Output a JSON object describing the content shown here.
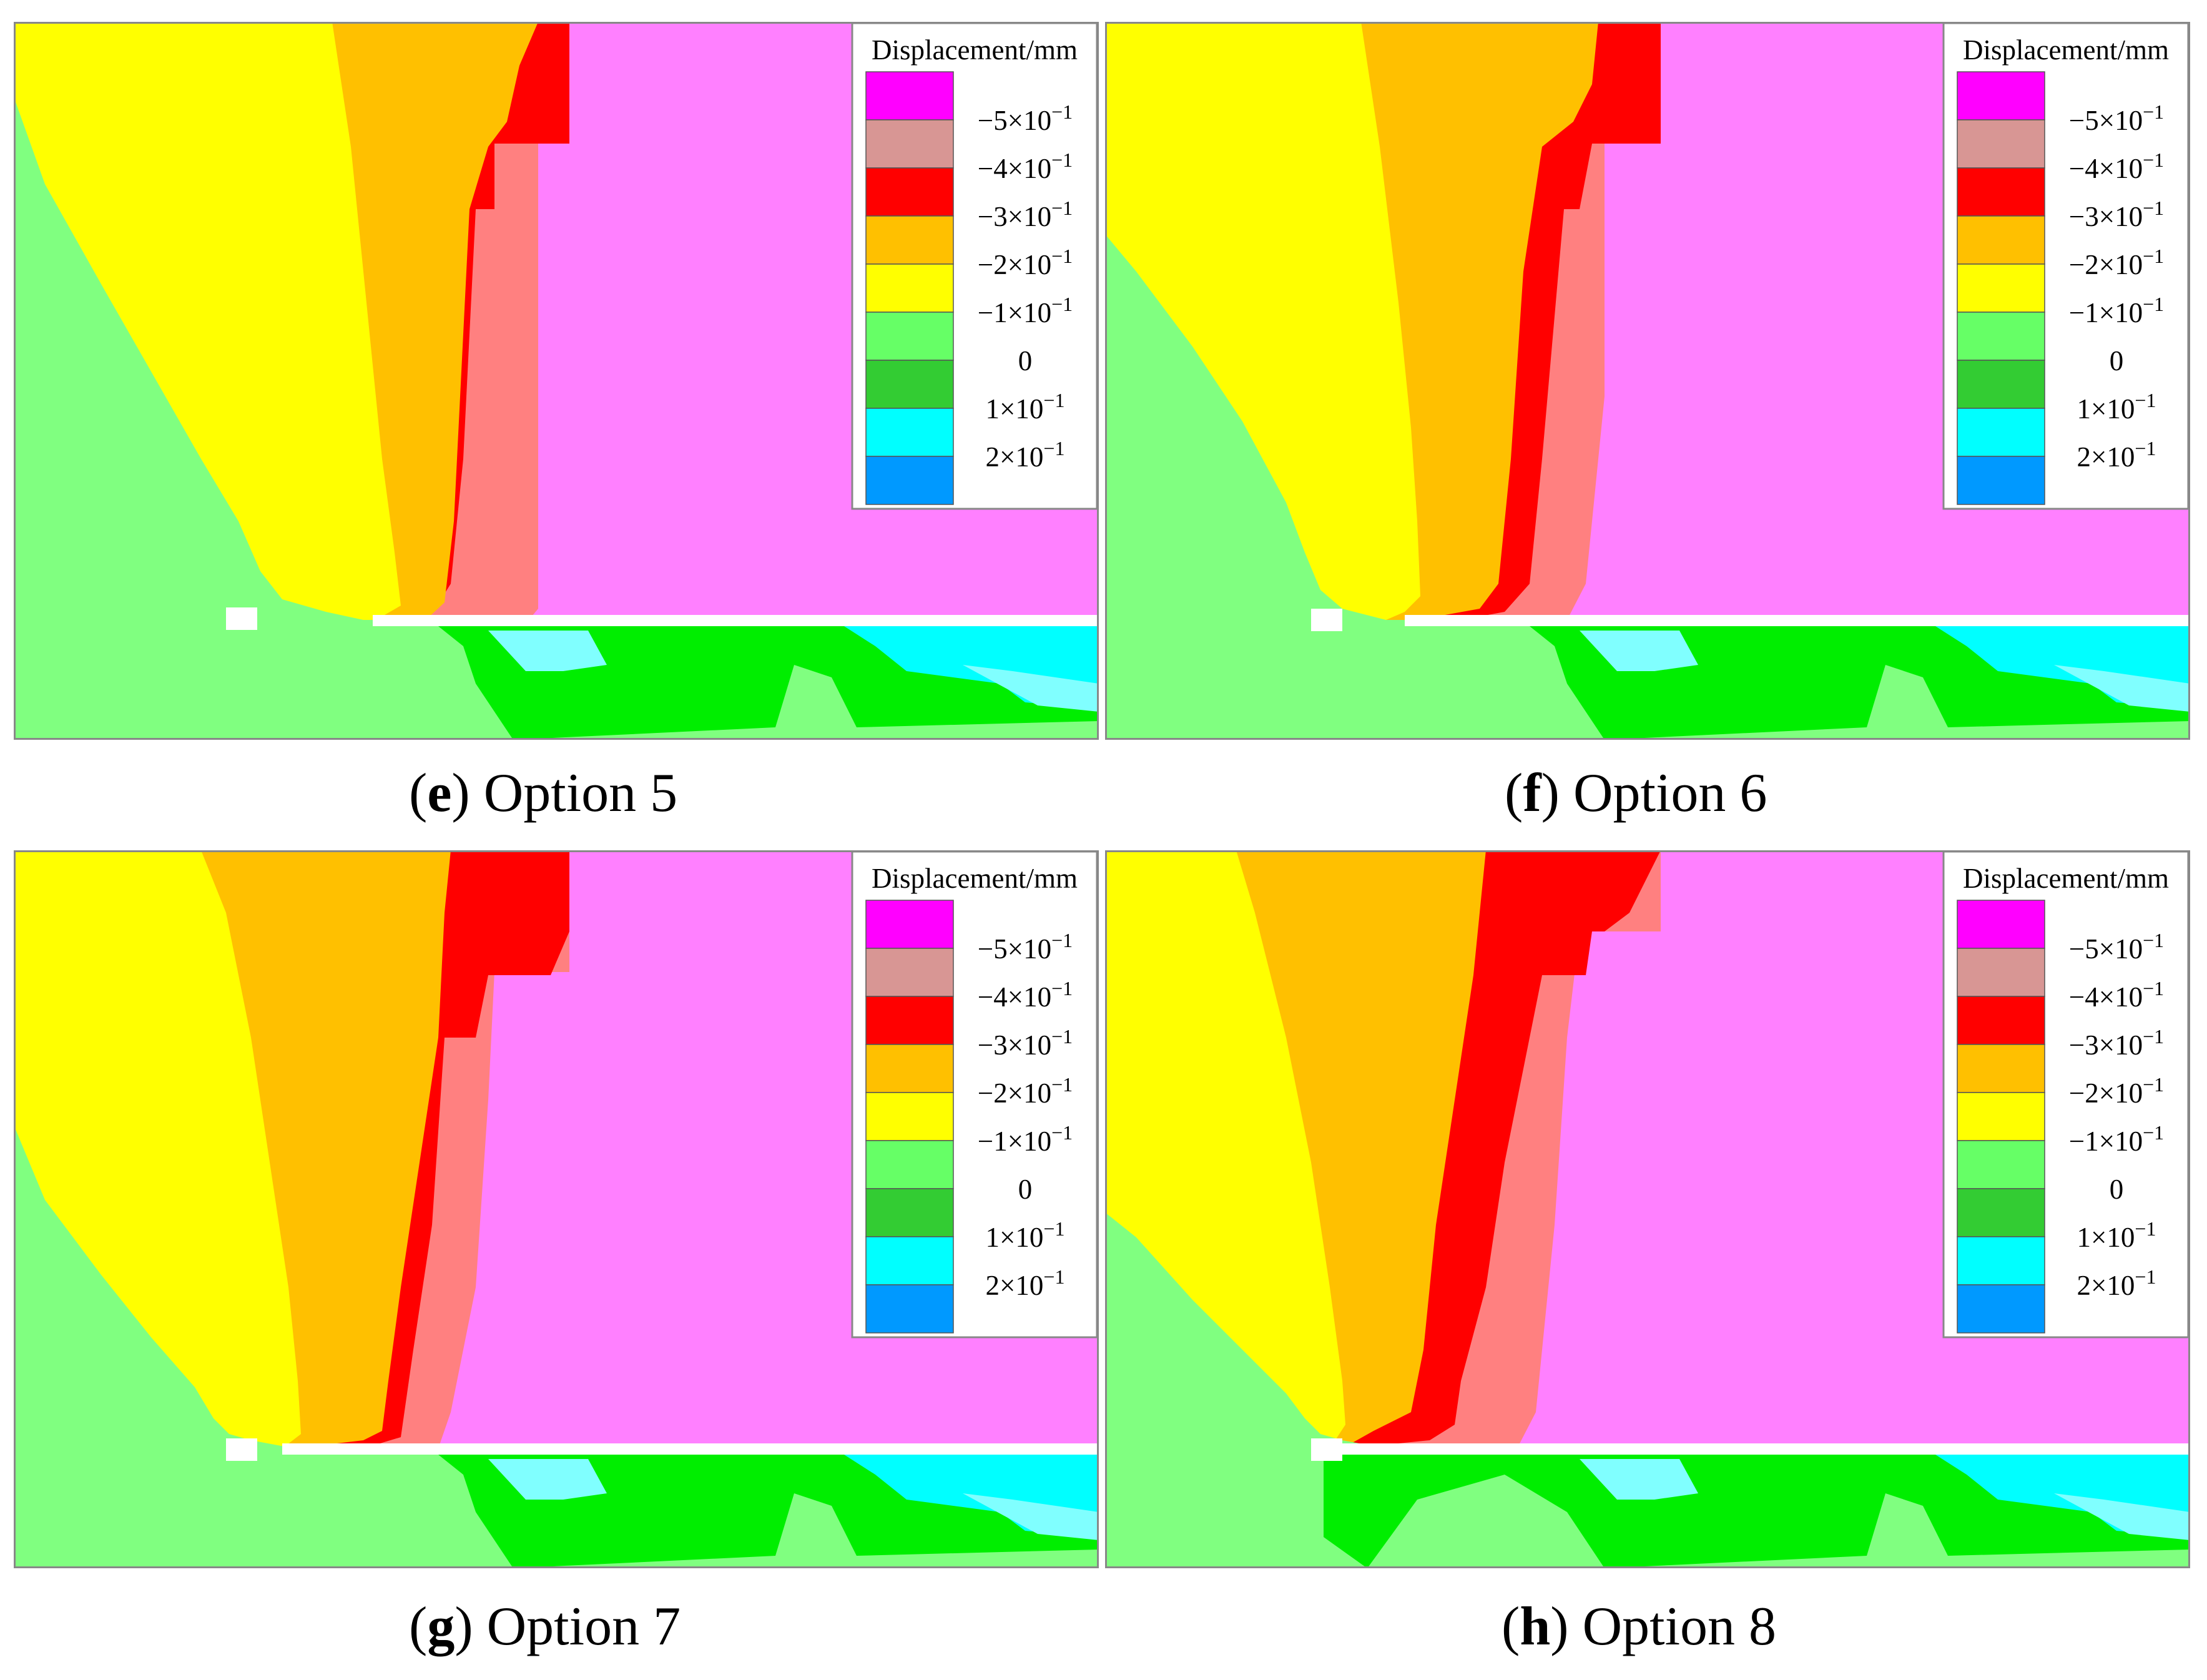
{
  "legend": {
    "title": "Displacement/mm",
    "ticks": [
      "−5×10",
      "−4×10",
      "−3×10",
      "−2×10",
      "−1×10",
      "0",
      "1×10",
      "2×10"
    ],
    "tick_exponent": "−1",
    "swatch_colors": [
      "#ff00ff",
      "#d89694",
      "#ff0000",
      "#ffc000",
      "#ffff00",
      "#66ff66",
      "#33cc33",
      "#00ffff",
      "#0099ff"
    ]
  },
  "colors": {
    "pink": "#ff80ff",
    "salmon": "#ff8080",
    "red": "#ff0000",
    "orange": "#ffc000",
    "yellow": "#ffff00",
    "light_green": "#80ff80",
    "green": "#00ee00",
    "cyan": "#00ffff",
    "light_cyan": "#80ffff"
  },
  "panels": [
    {
      "letter": "e",
      "label": "Option 5"
    },
    {
      "letter": "f",
      "label": "Option 6"
    },
    {
      "letter": "g",
      "label": "Option 7"
    },
    {
      "letter": "h",
      "label": "Option 8"
    }
  ]
}
